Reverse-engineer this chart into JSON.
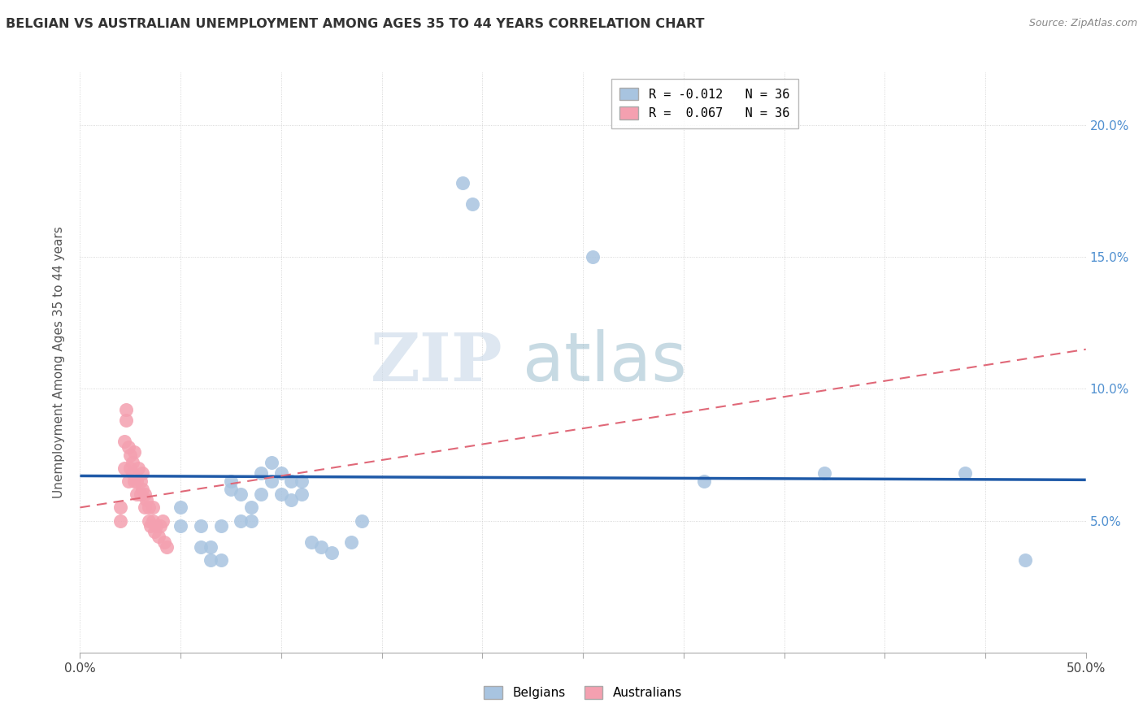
{
  "title": "BELGIAN VS AUSTRALIAN UNEMPLOYMENT AMONG AGES 35 TO 44 YEARS CORRELATION CHART",
  "source": "Source: ZipAtlas.com",
  "ylabel": "Unemployment Among Ages 35 to 44 years",
  "xlim": [
    0,
    0.5
  ],
  "ylim": [
    0,
    0.22
  ],
  "legend_belgians": "R = -0.012   N = 36",
  "legend_australians": "R =  0.067   N = 36",
  "belgians_color": "#a8c4e0",
  "australians_color": "#f4a0b0",
  "trendline_belgians_color": "#1f5aa8",
  "trendline_australians_color": "#e06878",
  "belgians_x": [
    0.05,
    0.05,
    0.06,
    0.06,
    0.065,
    0.065,
    0.07,
    0.07,
    0.075,
    0.075,
    0.08,
    0.08,
    0.085,
    0.085,
    0.09,
    0.09,
    0.095,
    0.095,
    0.1,
    0.1,
    0.105,
    0.105,
    0.11,
    0.11,
    0.115,
    0.12,
    0.125,
    0.135,
    0.14,
    0.19,
    0.195,
    0.255,
    0.31,
    0.37,
    0.44,
    0.47
  ],
  "belgians_y": [
    0.055,
    0.048,
    0.048,
    0.04,
    0.035,
    0.04,
    0.035,
    0.048,
    0.065,
    0.062,
    0.06,
    0.05,
    0.055,
    0.05,
    0.068,
    0.06,
    0.065,
    0.072,
    0.06,
    0.068,
    0.065,
    0.058,
    0.06,
    0.065,
    0.042,
    0.04,
    0.038,
    0.042,
    0.05,
    0.178,
    0.17,
    0.15,
    0.065,
    0.068,
    0.068,
    0.035
  ],
  "australians_x": [
    0.02,
    0.02,
    0.022,
    0.022,
    0.023,
    0.023,
    0.024,
    0.024,
    0.025,
    0.025,
    0.026,
    0.026,
    0.027,
    0.027,
    0.028,
    0.028,
    0.029,
    0.03,
    0.03,
    0.031,
    0.031,
    0.032,
    0.032,
    0.033,
    0.034,
    0.034,
    0.035,
    0.036,
    0.036,
    0.037,
    0.038,
    0.039,
    0.04,
    0.041,
    0.042,
    0.043
  ],
  "australians_y": [
    0.05,
    0.055,
    0.07,
    0.08,
    0.088,
    0.092,
    0.078,
    0.065,
    0.07,
    0.075,
    0.068,
    0.072,
    0.076,
    0.065,
    0.06,
    0.065,
    0.07,
    0.06,
    0.065,
    0.068,
    0.062,
    0.055,
    0.06,
    0.058,
    0.05,
    0.055,
    0.048,
    0.05,
    0.055,
    0.046,
    0.048,
    0.044,
    0.048,
    0.05,
    0.042,
    0.04
  ],
  "background_color": "#ffffff",
  "grid_color": "#cccccc",
  "axis_label_color": "#5090d0",
  "title_color": "#333333",
  "source_color": "#888888"
}
